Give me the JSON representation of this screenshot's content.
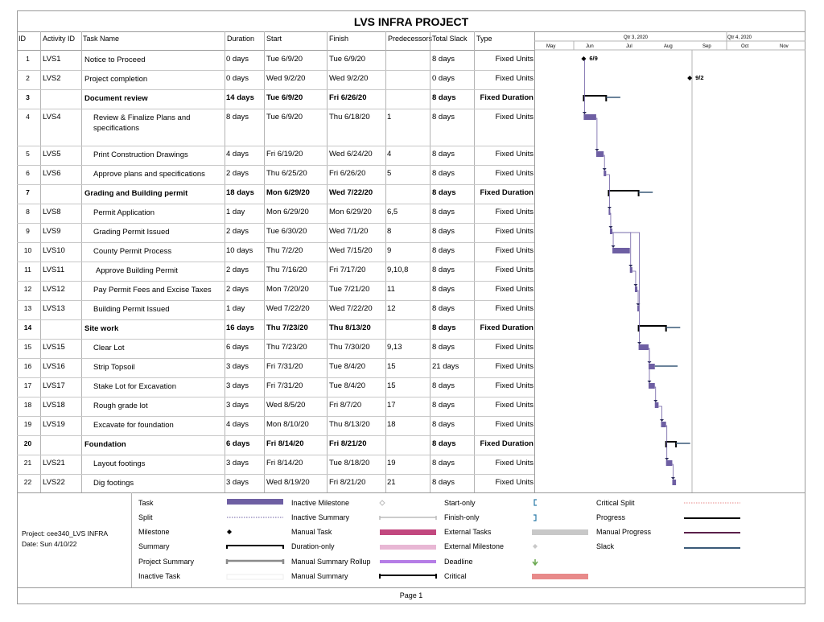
{
  "title": "LVS INFRA PROJECT",
  "columns": {
    "id": "ID",
    "activity": "Activity ID",
    "name": "Task Name",
    "duration": "Duration",
    "start": "Start",
    "finish": "Finish",
    "predecessors": "Predecessors",
    "slack": "Total Slack",
    "type": "Type"
  },
  "timescale": {
    "quarters": [
      "Qtr 3, 2020",
      "Qtr 4, 2020"
    ],
    "months": [
      "May",
      "Jun",
      "Jul",
      "Aug",
      "Sep",
      "Oct",
      "Nov"
    ]
  },
  "tasks": [
    {
      "id": "1",
      "act": "LVS1",
      "name": "Notice to Proceed",
      "dur": "0 days",
      "start": "Tue 6/9/20",
      "finish": "Tue 6/9/20",
      "pred": "",
      "slack": "8 days",
      "type": "Fixed Units",
      "summary": false,
      "indent": 0
    },
    {
      "id": "2",
      "act": "LVS2",
      "name": "Project completion",
      "dur": "0 days",
      "start": "Wed 9/2/20",
      "finish": "Wed 9/2/20",
      "pred": "",
      "slack": "0 days",
      "type": "Fixed Units",
      "summary": false,
      "indent": 0
    },
    {
      "id": "3",
      "act": "",
      "name": "Document review",
      "dur": "14 days",
      "start": "Tue 6/9/20",
      "finish": "Fri 6/26/20",
      "pred": "",
      "slack": "8 days",
      "type": "Fixed Duration",
      "summary": true,
      "indent": 0
    },
    {
      "id": "4",
      "act": "LVS4",
      "name": "Review & Finalize Plans and specifications",
      "dur": "8 days",
      "start": "Tue 6/9/20",
      "finish": "Thu 6/18/20",
      "pred": "1",
      "slack": "8 days",
      "type": "Fixed Units",
      "summary": false,
      "indent": 1
    },
    {
      "id": "5",
      "act": "LVS5",
      "name": "Print Construction Drawings",
      "dur": "4 days",
      "start": "Fri 6/19/20",
      "finish": "Wed 6/24/20",
      "pred": "4",
      "slack": "8 days",
      "type": "Fixed Units",
      "summary": false,
      "indent": 1
    },
    {
      "id": "6",
      "act": "LVS6",
      "name": "Approve plans and specifications",
      "dur": "2 days",
      "start": "Thu 6/25/20",
      "finish": "Fri 6/26/20",
      "pred": "5",
      "slack": "8 days",
      "type": "Fixed Units",
      "summary": false,
      "indent": 1
    },
    {
      "id": "7",
      "act": "",
      "name": "Grading and Building permit",
      "dur": "18 days",
      "start": "Mon 6/29/20",
      "finish": "Wed 7/22/20",
      "pred": "",
      "slack": "8 days",
      "type": "Fixed Duration",
      "summary": true,
      "indent": 0
    },
    {
      "id": "8",
      "act": "LVS8",
      "name": "Permit Application",
      "dur": "1 day",
      "start": "Mon 6/29/20",
      "finish": "Mon 6/29/20",
      "pred": "6,5",
      "slack": "8 days",
      "type": "Fixed Units",
      "summary": false,
      "indent": 1
    },
    {
      "id": "9",
      "act": "LVS9",
      "name": "Grading Permit Issued",
      "dur": "2 days",
      "start": "Tue 6/30/20",
      "finish": "Wed 7/1/20",
      "pred": "8",
      "slack": "8 days",
      "type": "Fixed Units",
      "summary": false,
      "indent": 1
    },
    {
      "id": "10",
      "act": "LVS10",
      "name": "County Permit Process",
      "dur": "10 days",
      "start": "Thu 7/2/20",
      "finish": "Wed 7/15/20",
      "pred": "9",
      "slack": "8 days",
      "type": "Fixed Units",
      "summary": false,
      "indent": 1
    },
    {
      "id": "11",
      "act": "LVS11",
      "name": "Approve Building Permit",
      "dur": "2 days",
      "start": "Thu 7/16/20",
      "finish": "Fri 7/17/20",
      "pred": "9,10,8",
      "slack": "8 days",
      "type": "Fixed Units",
      "summary": false,
      "indent": 1
    },
    {
      "id": "12",
      "act": "LVS12",
      "name": "Pay Permit Fees and Excise Taxes",
      "dur": "2 days",
      "start": "Mon 7/20/20",
      "finish": "Tue 7/21/20",
      "pred": "11",
      "slack": "8 days",
      "type": "Fixed Units",
      "summary": false,
      "indent": 1
    },
    {
      "id": "13",
      "act": "LVS13",
      "name": "Building Permit Issued",
      "dur": "1 day",
      "start": "Wed 7/22/20",
      "finish": "Wed 7/22/20",
      "pred": "12",
      "slack": "8 days",
      "type": "Fixed Units",
      "summary": false,
      "indent": 1
    },
    {
      "id": "14",
      "act": "",
      "name": "Site work",
      "dur": "16 days",
      "start": "Thu 7/23/20",
      "finish": "Thu 8/13/20",
      "pred": "",
      "slack": "8 days",
      "type": "Fixed Duration",
      "summary": true,
      "indent": 0
    },
    {
      "id": "15",
      "act": "LVS15",
      "name": "Clear Lot",
      "dur": "6 days",
      "start": "Thu 7/23/20",
      "finish": "Thu 7/30/20",
      "pred": "9,13",
      "slack": "8 days",
      "type": "Fixed Units",
      "summary": false,
      "indent": 1
    },
    {
      "id": "16",
      "act": "LVS16",
      "name": "Strip Topsoil",
      "dur": "3 days",
      "start": "Fri 7/31/20",
      "finish": "Tue 8/4/20",
      "pred": "15",
      "slack": "21 days",
      "type": "Fixed Units",
      "summary": false,
      "indent": 1
    },
    {
      "id": "17",
      "act": "LVS17",
      "name": "Stake Lot for Excavation",
      "dur": "3 days",
      "start": "Fri 7/31/20",
      "finish": "Tue 8/4/20",
      "pred": "15",
      "slack": "8 days",
      "type": "Fixed Units",
      "summary": false,
      "indent": 1
    },
    {
      "id": "18",
      "act": "LVS18",
      "name": "Rough grade lot",
      "dur": "3 days",
      "start": "Wed 8/5/20",
      "finish": "Fri 8/7/20",
      "pred": "17",
      "slack": "8 days",
      "type": "Fixed Units",
      "summary": false,
      "indent": 1
    },
    {
      "id": "19",
      "act": "LVS19",
      "name": "Excavate for foundation",
      "dur": "4 days",
      "start": "Mon 8/10/20",
      "finish": "Thu 8/13/20",
      "pred": "18",
      "slack": "8 days",
      "type": "Fixed Units",
      "summary": false,
      "indent": 1
    },
    {
      "id": "20",
      "act": "",
      "name": "Foundation",
      "dur": "6 days",
      "start": "Fri 8/14/20",
      "finish": "Fri 8/21/20",
      "pred": "",
      "slack": "8 days",
      "type": "Fixed Duration",
      "summary": true,
      "indent": 0
    },
    {
      "id": "21",
      "act": "LVS21",
      "name": "Layout footings",
      "dur": "3 days",
      "start": "Fri 8/14/20",
      "finish": "Tue 8/18/20",
      "pred": "19",
      "slack": "8 days",
      "type": "Fixed Units",
      "summary": false,
      "indent": 1
    },
    {
      "id": "22",
      "act": "LVS22",
      "name": "Dig footings",
      "dur": "3 days",
      "start": "Wed 8/19/20",
      "finish": "Fri 8/21/20",
      "pred": "21",
      "slack": "8 days",
      "type": "Fixed Units",
      "summary": false,
      "indent": 1
    }
  ],
  "milestone_labels": {
    "m1": "6/9",
    "m2": "9/2"
  },
  "legend": {
    "project": "Project: cee340_LVS INFRA",
    "date": "Date: Sun 4/10/22",
    "col1": [
      "Task",
      "Split",
      "Milestone",
      "Summary",
      "Project Summary",
      "Inactive Task"
    ],
    "col2": [
      "Inactive Milestone",
      "Inactive Summary",
      "Manual Task",
      "Duration-only",
      "Manual Summary Rollup",
      "Manual Summary"
    ],
    "col3": [
      "Start-only",
      "Finish-only",
      "External Tasks",
      "External Milestone",
      "Deadline",
      "Critical"
    ],
    "col4": [
      "Critical Split",
      "Progress",
      "Manual Progress",
      "Slack"
    ]
  },
  "colors": {
    "task": "#6e5fa3",
    "slack": "#3a5a78",
    "manual": "#c2487f",
    "critical": "#e88a8a",
    "rollup": "#b57de6",
    "external": "#c8c8c8"
  },
  "page": "Page 1"
}
